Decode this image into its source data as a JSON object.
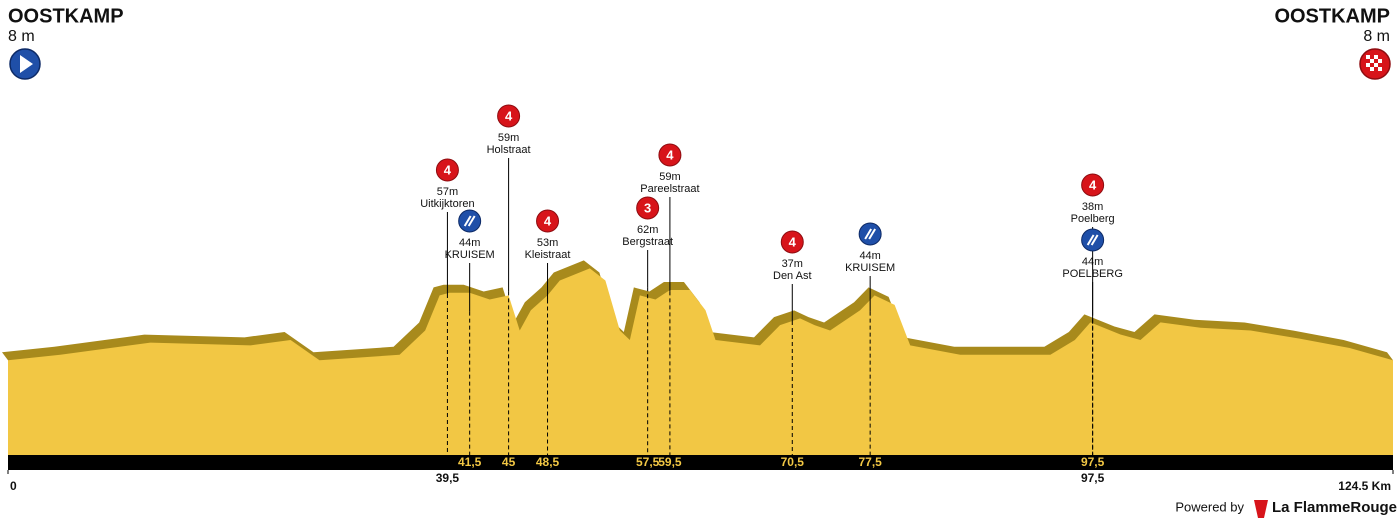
{
  "chart_data": {
    "type": "area",
    "start": {
      "name": "OOSTKAMP",
      "altitude": "8 m"
    },
    "finish": {
      "name": "OOSTKAMP",
      "altitude": "8 m"
    },
    "x": [
      0,
      4.7,
      12.8,
      21.8,
      25.4,
      28,
      35.2,
      37.5,
      38.8,
      39.7,
      41.5,
      43.3,
      45,
      46,
      47,
      48.5,
      49.6,
      52.3,
      53.7,
      55,
      55.9,
      56.8,
      58.2,
      59.5,
      61.3,
      62.7,
      63.6,
      67.6,
      69.4,
      71.2,
      72.5,
      73.9,
      76.6,
      77.9,
      79.7,
      81.1,
      85.6,
      93.7,
      95.9,
      97.3,
      100,
      101.8,
      103.6,
      107.2,
      111.7,
      116.1,
      120.6,
      124.5
    ],
    "values": [
      8,
      12,
      21,
      19,
      23,
      8,
      12,
      30,
      56,
      58,
      58,
      53,
      56,
      30,
      45,
      56,
      67,
      76,
      67,
      30,
      23,
      56,
      53,
      60,
      60,
      45,
      23,
      19,
      34,
      39,
      34,
      30,
      45,
      56,
      49,
      19,
      12,
      12,
      23,
      36,
      27,
      23,
      36,
      32,
      30,
      24,
      17,
      8
    ],
    "color": "#f2c744",
    "xlim": [
      0,
      124.5
    ],
    "xticks": [
      0,
      {
        "value": 124.5,
        "label": "124.5 Km"
      }
    ],
    "climbs": [
      {
        "name": "Uitkijktoren",
        "altitude": {
          "value": 57,
          "label": "57m"
        },
        "km": {
          "value": 39.5,
          "label": "39,5"
        },
        "category": 4
      },
      {
        "name": "Holstraat",
        "altitude": {
          "value": 59,
          "label": "59m"
        },
        "km": {
          "value": 45,
          "label": "45"
        },
        "category": 4
      },
      {
        "name": "Kleistraat",
        "altitude": {
          "value": 53,
          "label": "53m"
        },
        "km": {
          "value": 48.5,
          "label": "48,5"
        },
        "category": 4
      },
      {
        "name": "Bergstraat",
        "altitude": {
          "value": 62,
          "label": "62m"
        },
        "km": {
          "value": 57.5,
          "label": "57,5"
        },
        "category": 3
      },
      {
        "name": "Pareelstraat",
        "altitude": {
          "value": 59,
          "label": "59m"
        },
        "km": {
          "value": 59.5,
          "label": "59,5"
        },
        "category": 4
      },
      {
        "name": "Den Ast",
        "altitude": {
          "value": 37,
          "label": "37m"
        },
        "km": {
          "value": 70.5,
          "label": "70,5"
        },
        "category": 4
      },
      {
        "name": "Poelberg",
        "altitude": {
          "value": 38,
          "label": "38m"
        },
        "km": {
          "value": 97.5,
          "label": "97,5"
        },
        "category": 4
      }
    ],
    "sprints": [
      {
        "name": "KRUISEM",
        "altitude": {
          "value": 44,
          "label": "44m"
        },
        "km": {
          "value": 41.5,
          "label": "41,5"
        }
      },
      {
        "name": "KRUISEM",
        "altitude": {
          "value": 44,
          "label": "44m"
        },
        "km": {
          "value": 77.5,
          "label": "77,5"
        }
      },
      {
        "name": "POELBERG",
        "altitude": {
          "value": 44,
          "label": "44m"
        },
        "km": {
          "value": 97.5,
          "label": "97,5"
        }
      }
    ]
  },
  "footer": {
    "powered_by": "Powered by",
    "brand": "La FlammeRouge"
  }
}
